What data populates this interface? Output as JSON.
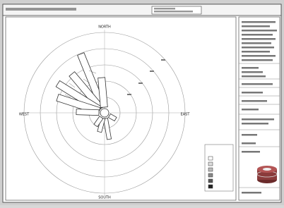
{
  "compass": {
    "north": "NORTH",
    "south": "SOUTH",
    "west": "WEST",
    "east": "EAST"
  }
}
